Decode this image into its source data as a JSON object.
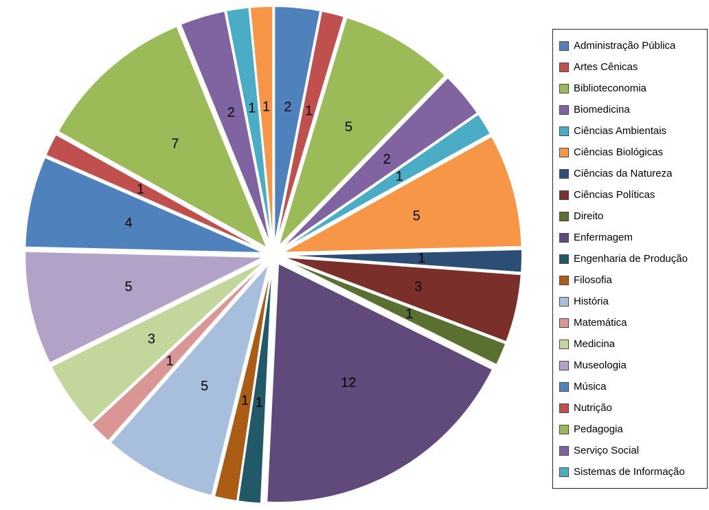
{
  "chart_data": {
    "type": "pie",
    "style": "exploded",
    "background": "#FFFFFF",
    "start_angle_deg": 0,
    "direction": "clockwise",
    "total": 65,
    "value_labels_shown": true,
    "legend_position": "right",
    "slices": [
      {
        "label": "Administração Pública",
        "value": 2,
        "color": "#4F81BD"
      },
      {
        "label": "Artes Cênicas",
        "value": 1,
        "color": "#C0504D"
      },
      {
        "label": "Biblioteconomia",
        "value": 5,
        "color": "#9BBB59"
      },
      {
        "label": "Biomedicina",
        "value": 2,
        "color": "#8064A2"
      },
      {
        "label": "Ciências Ambientais",
        "value": 1,
        "color": "#4BACC6"
      },
      {
        "label": "Ciências Biológicas",
        "value": 5,
        "color": "#F79646"
      },
      {
        "label": "Ciências da Natureza",
        "value": 1,
        "color": "#2C4D75"
      },
      {
        "label": "Ciências Políticas",
        "value": 3,
        "color": "#7A2F2B"
      },
      {
        "label": "Direito",
        "value": 1,
        "color": "#5A7030"
      },
      {
        "label": "Enfermagem",
        "value": 12,
        "color": "#604A7B"
      },
      {
        "label": "Engenharia de Produção",
        "value": 1,
        "color": "#215968"
      },
      {
        "label": "Filosofia",
        "value": 1,
        "color": "#AC5D15"
      },
      {
        "label": "História",
        "value": 5,
        "color": "#A7BFDD"
      },
      {
        "label": "Matemática",
        "value": 1,
        "color": "#D99694"
      },
      {
        "label": "Medicina",
        "value": 3,
        "color": "#C3D69B"
      },
      {
        "label": "Museologia",
        "value": 5,
        "color": "#B3A2C7"
      },
      {
        "label": "Música",
        "value": 4,
        "color": "#4F81BD"
      },
      {
        "label": "Nutrição",
        "value": 1,
        "color": "#C0504D"
      },
      {
        "label": "Pedagogia",
        "value": 7,
        "color": "#9BBB59"
      },
      {
        "label": "Serviço Social",
        "value": 2,
        "color": "#8064A2"
      },
      {
        "label": "Sistemas de Informação",
        "value": 1,
        "color": "#4BACC6"
      },
      {
        "label": "",
        "value": 1,
        "color": "#F79646"
      }
    ],
    "legend_items": [
      "Administração Pública",
      "Artes Cênicas",
      "Biblioteconomia",
      "Biomedicina",
      "Ciências Ambientais",
      "Ciências Biológicas",
      "Ciências da Natureza",
      "Ciências Políticas",
      "Direito",
      "Enfermagem",
      "Engenharia de Produção",
      "Filosofia",
      "História",
      "Matemática",
      "Medicina",
      "Museologia",
      "Música",
      "Nutrição",
      "Pedagogia",
      "Serviço Social",
      "Sistemas de Informação"
    ]
  }
}
